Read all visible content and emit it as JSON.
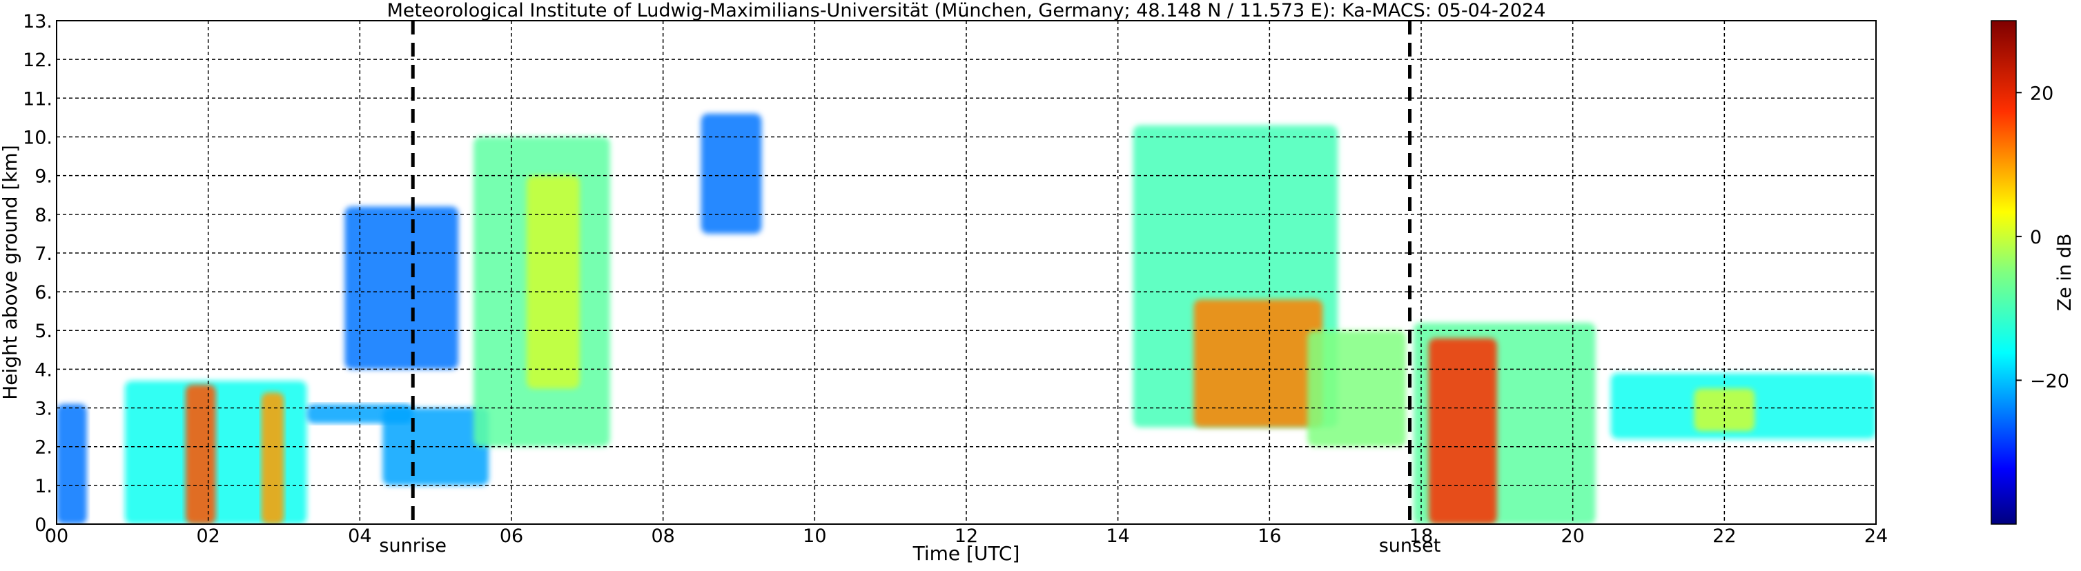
{
  "chart_data": {
    "type": "heatmap",
    "title": "Meteorological Institute of Ludwig-Maximilians-Universität (München, Germany; 48.148 N / 11.573 E):    Ka-MACS: 05-04-2024",
    "xlabel": "Time [UTC]",
    "ylabel": "Height above ground [km]",
    "xlim": [
      0,
      24
    ],
    "ylim": [
      0,
      13
    ],
    "x_ticks": [
      "00",
      "02",
      "04",
      "06",
      "08",
      "10",
      "12",
      "14",
      "16",
      "18",
      "20",
      "22",
      "24"
    ],
    "y_ticks": [
      "0.",
      "1.",
      "2.",
      "3.",
      "4.",
      "5.",
      "6.",
      "7.",
      "8.",
      "9.",
      "10.",
      "11.",
      "12.",
      "13."
    ],
    "grid": true,
    "markers": [
      {
        "label": "sunrise",
        "x": 4.7
      },
      {
        "label": "sunset",
        "x": 17.85
      }
    ],
    "colorbar": {
      "label": "Ze in dB",
      "range": [
        -40,
        30
      ],
      "ticks": [
        "20",
        "0",
        "−20"
      ],
      "tick_values": [
        20,
        0,
        -20
      ]
    },
    "echo_regions": [
      {
        "t": [
          0.0,
          0.4
        ],
        "h": [
          0.0,
          3.1
        ],
        "ze": -25
      },
      {
        "t": [
          0.9,
          3.3
        ],
        "h": [
          0.0,
          3.7
        ],
        "ze": -15
      },
      {
        "t": [
          1.7,
          2.1
        ],
        "h": [
          0.0,
          3.6
        ],
        "ze": 15
      },
      {
        "t": [
          2.7,
          3.0
        ],
        "h": [
          0.0,
          3.4
        ],
        "ze": 10
      },
      {
        "t": [
          3.3,
          4.7
        ],
        "h": [
          2.6,
          3.1
        ],
        "ze": -22
      },
      {
        "t": [
          4.3,
          5.7
        ],
        "h": [
          1.0,
          3.0
        ],
        "ze": -22
      },
      {
        "t": [
          3.8,
          5.3
        ],
        "h": [
          4.0,
          8.2
        ],
        "ze": -25
      },
      {
        "t": [
          5.5,
          7.3
        ],
        "h": [
          2.0,
          10.0
        ],
        "ze": -8
      },
      {
        "t": [
          6.2,
          6.9
        ],
        "h": [
          3.5,
          9.0
        ],
        "ze": 0
      },
      {
        "t": [
          8.5,
          9.3
        ],
        "h": [
          7.5,
          10.6
        ],
        "ze": -25
      },
      {
        "t": [
          14.2,
          16.9
        ],
        "h": [
          2.5,
          10.3
        ],
        "ze": -10
      },
      {
        "t": [
          15.0,
          16.7
        ],
        "h": [
          2.5,
          5.8
        ],
        "ze": 12
      },
      {
        "t": [
          16.5,
          17.8
        ],
        "h": [
          2.0,
          5.0
        ],
        "ze": -5
      },
      {
        "t": [
          17.9,
          20.3
        ],
        "h": [
          0.0,
          5.2
        ],
        "ze": -8
      },
      {
        "t": [
          18.1,
          19.0
        ],
        "h": [
          0.0,
          4.8
        ],
        "ze": 18
      },
      {
        "t": [
          20.5,
          24.0
        ],
        "h": [
          2.2,
          3.9
        ],
        "ze": -15
      },
      {
        "t": [
          21.6,
          22.4
        ],
        "h": [
          2.4,
          3.5
        ],
        "ze": 0
      }
    ]
  }
}
